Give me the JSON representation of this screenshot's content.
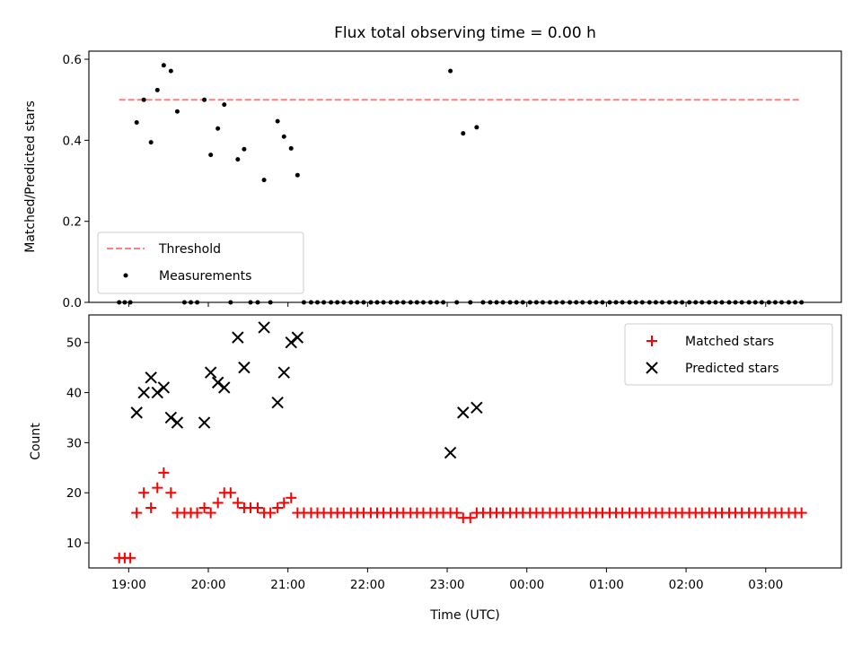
{
  "chart_data": [
    {
      "type": "scatter",
      "title": "Flux total observing time = 0.00 h",
      "xlabel": "",
      "ylabel": "Matched/Predicted stars",
      "xlim": [
        18.5,
        27.95
      ],
      "ylim": [
        0.0,
        0.62
      ],
      "yticks": [
        "0.0",
        "0.2",
        "0.4",
        "0.6"
      ],
      "ytick_values": [
        0.0,
        0.2,
        0.4,
        0.6
      ],
      "grid": false,
      "legend_position": "lower-left",
      "series": [
        {
          "name": "Threshold",
          "kind": "dashed-line",
          "color": "#ff7f7f",
          "x": [
            18.88,
            27.43
          ],
          "y": [
            0.5,
            0.5
          ]
        },
        {
          "name": "Measurements",
          "kind": "dots",
          "color": "#000000",
          "x": [
            18.88,
            18.95,
            19.02,
            19.1,
            19.19,
            19.28,
            19.36,
            19.44,
            19.53,
            19.61,
            19.7,
            19.78,
            19.86,
            19.95,
            20.03,
            20.12,
            20.2,
            20.28,
            20.37,
            20.45,
            20.53,
            20.62,
            20.7,
            20.78,
            20.87,
            20.95,
            21.04,
            21.12,
            21.2,
            21.29,
            21.37,
            21.45,
            21.54,
            21.62,
            21.7,
            21.79,
            21.87,
            21.95,
            22.04,
            22.12,
            22.2,
            22.29,
            22.37,
            22.45,
            22.54,
            22.62,
            22.7,
            22.79,
            22.87,
            22.95,
            23.04,
            23.12,
            23.2,
            23.29,
            23.37,
            23.45,
            23.54,
            23.62,
            23.7,
            23.79,
            23.87,
            23.95,
            24.04,
            24.12,
            24.2,
            24.29,
            24.37,
            24.45,
            24.54,
            24.62,
            24.7,
            24.79,
            24.87,
            24.95,
            25.04,
            25.12,
            25.2,
            25.29,
            25.37,
            25.45,
            25.54,
            25.62,
            25.7,
            25.79,
            25.87,
            25.95,
            26.04,
            26.12,
            26.2,
            26.29,
            26.37,
            26.45,
            26.54,
            26.62,
            26.7,
            26.79,
            26.87,
            26.95,
            27.04,
            27.12,
            27.2,
            27.29,
            27.37,
            27.45
          ],
          "y": [
            0.0,
            0.0,
            0.0,
            0.444,
            0.5,
            0.395,
            0.524,
            0.585,
            0.571,
            0.471,
            0.0,
            0.0,
            0.0,
            0.5,
            0.364,
            0.429,
            0.488,
            0.0,
            0.353,
            0.378,
            0.0,
            0.0,
            0.302,
            0.0,
            0.447,
            0.409,
            0.38,
            0.314,
            0.0,
            0.0,
            0.0,
            0.0,
            0.0,
            0.0,
            0.0,
            0.0,
            0.0,
            0.0,
            0.0,
            0.0,
            0.0,
            0.0,
            0.0,
            0.0,
            0.0,
            0.0,
            0.0,
            0.0,
            0.0,
            0.0,
            0.571,
            0.0,
            0.417,
            0.0,
            0.432,
            0.0,
            0.0,
            0.0,
            0.0,
            0.0,
            0.0,
            0.0,
            0.0,
            0.0,
            0.0,
            0.0,
            0.0,
            0.0,
            0.0,
            0.0,
            0.0,
            0.0,
            0.0,
            0.0,
            0.0,
            0.0,
            0.0,
            0.0,
            0.0,
            0.0,
            0.0,
            0.0,
            0.0,
            0.0,
            0.0,
            0.0,
            0.0,
            0.0,
            0.0,
            0.0,
            0.0,
            0.0,
            0.0,
            0.0,
            0.0,
            0.0,
            0.0,
            0.0,
            0.0,
            0.0,
            0.0,
            0.0,
            0.0,
            0.0
          ]
        }
      ]
    },
    {
      "type": "scatter",
      "title": "",
      "xlabel": "Time (UTC)",
      "ylabel": "Count",
      "xlim": [
        18.5,
        27.95
      ],
      "ylim": [
        5.0,
        55.5
      ],
      "xticks": [
        "19:00",
        "20:00",
        "21:00",
        "22:00",
        "23:00",
        "00:00",
        "01:00",
        "02:00",
        "03:00"
      ],
      "xtick_values": [
        19,
        20,
        21,
        22,
        23,
        24,
        25,
        26,
        27
      ],
      "yticks": [
        "10",
        "20",
        "30",
        "40",
        "50"
      ],
      "ytick_values": [
        10,
        20,
        30,
        40,
        50
      ],
      "grid": false,
      "legend_position": "upper-right",
      "series": [
        {
          "name": "Matched stars",
          "kind": "plus",
          "color": "#ff0000",
          "x": [
            18.88,
            18.95,
            19.02,
            19.1,
            19.19,
            19.28,
            19.36,
            19.44,
            19.53,
            19.61,
            19.7,
            19.78,
            19.86,
            19.95,
            20.03,
            20.12,
            20.2,
            20.28,
            20.37,
            20.45,
            20.53,
            20.62,
            20.7,
            20.78,
            20.87,
            20.95,
            21.04,
            21.12,
            21.2,
            21.29,
            21.37,
            21.45,
            21.54,
            21.62,
            21.7,
            21.79,
            21.87,
            21.95,
            22.04,
            22.12,
            22.2,
            22.29,
            22.37,
            22.45,
            22.54,
            22.62,
            22.7,
            22.79,
            22.87,
            22.95,
            23.04,
            23.12,
            23.2,
            23.29,
            23.37,
            23.45,
            23.54,
            23.62,
            23.7,
            23.79,
            23.87,
            23.95,
            24.04,
            24.12,
            24.2,
            24.29,
            24.37,
            24.45,
            24.54,
            24.62,
            24.7,
            24.79,
            24.87,
            24.95,
            25.04,
            25.12,
            25.2,
            25.29,
            25.37,
            25.45,
            25.54,
            25.62,
            25.7,
            25.79,
            25.87,
            25.95,
            26.04,
            26.12,
            26.2,
            26.29,
            26.37,
            26.45,
            26.54,
            26.62,
            26.7,
            26.79,
            26.87,
            26.95,
            27.04,
            27.12,
            27.2,
            27.29,
            27.37,
            27.45
          ],
          "y": [
            7,
            7,
            7,
            16,
            20,
            17,
            21,
            24,
            20,
            16,
            16,
            16,
            16,
            17,
            16,
            18,
            20,
            20,
            18,
            17,
            17,
            17,
            16,
            16,
            17,
            18,
            19,
            16,
            16,
            16,
            16,
            16,
            16,
            16,
            16,
            16,
            16,
            16,
            16,
            16,
            16,
            16,
            16,
            16,
            16,
            16,
            16,
            16,
            16,
            16,
            16,
            16,
            15,
            15,
            16,
            16,
            16,
            16,
            16,
            16,
            16,
            16,
            16,
            16,
            16,
            16,
            16,
            16,
            16,
            16,
            16,
            16,
            16,
            16,
            16,
            16,
            16,
            16,
            16,
            16,
            16,
            16,
            16,
            16,
            16,
            16,
            16,
            16,
            16,
            16,
            16,
            16,
            16,
            16,
            16,
            16,
            16,
            16,
            16,
            16,
            16,
            16,
            16,
            16
          ]
        },
        {
          "name": "Predicted stars",
          "kind": "x",
          "color": "#000000",
          "x": [
            19.1,
            19.19,
            19.28,
            19.36,
            19.44,
            19.53,
            19.61,
            19.95,
            20.03,
            20.12,
            20.2,
            20.37,
            20.45,
            20.7,
            20.87,
            20.95,
            21.04,
            21.12,
            23.04,
            23.2,
            23.37
          ],
          "y": [
            36,
            40,
            43,
            40,
            41,
            35,
            34,
            34,
            44,
            42,
            41,
            51,
            45,
            53,
            38,
            44,
            50,
            51,
            28,
            36,
            37
          ]
        }
      ]
    }
  ]
}
